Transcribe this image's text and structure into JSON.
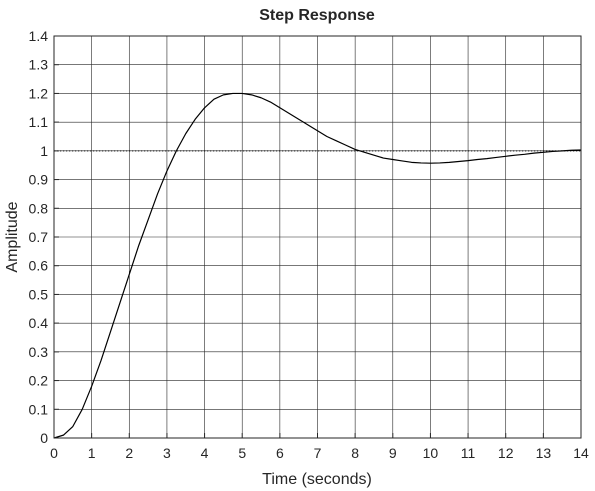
{
  "chart_data": {
    "type": "line",
    "title": "Step Response",
    "xlabel": "Time (seconds)",
    "ylabel": "Amplitude",
    "xlim": [
      0,
      14
    ],
    "ylim": [
      0,
      1.4
    ],
    "xticks": [
      0,
      1,
      2,
      3,
      4,
      5,
      6,
      7,
      8,
      9,
      10,
      11,
      12,
      13,
      14
    ],
    "yticks": [
      0,
      0.1,
      0.2,
      0.3,
      0.4,
      0.5,
      0.6,
      0.7,
      0.8,
      0.9,
      1,
      1.1,
      1.2,
      1.3,
      1.4
    ],
    "xtick_labels": [
      "0",
      "1",
      "2",
      "3",
      "4",
      "5",
      "6",
      "7",
      "8",
      "9",
      "10",
      "11",
      "12",
      "13",
      "14"
    ],
    "ytick_labels": [
      "0",
      "0.1",
      "0.2",
      "0.3",
      "0.4",
      "0.5",
      "0.6",
      "0.7",
      "0.8",
      "0.9",
      "1",
      "1.1",
      "1.2",
      "1.3",
      "1.4"
    ],
    "grid": true,
    "reference_line": {
      "y": 1,
      "style": "dotted"
    },
    "series": [
      {
        "x": [
          0,
          0.25,
          0.5,
          0.75,
          1,
          1.25,
          1.5,
          1.75,
          2,
          2.25,
          2.5,
          2.75,
          3,
          3.25,
          3.5,
          3.75,
          4,
          4.25,
          4.5,
          4.75,
          5,
          5.25,
          5.5,
          5.75,
          6,
          6.25,
          6.5,
          6.75,
          7,
          7.25,
          7.5,
          7.75,
          8,
          8.25,
          8.5,
          8.75,
          9,
          9.25,
          9.5,
          9.75,
          10,
          10.25,
          10.5,
          10.75,
          11,
          11.25,
          11.5,
          11.75,
          12,
          12.25,
          12.5,
          12.75,
          13,
          13.25,
          13.5,
          13.75,
          14
        ],
        "y": [
          0,
          0.01,
          0.04,
          0.1,
          0.18,
          0.27,
          0.37,
          0.47,
          0.57,
          0.67,
          0.76,
          0.85,
          0.93,
          1.0,
          1.06,
          1.11,
          1.15,
          1.18,
          1.195,
          1.2,
          1.2,
          1.195,
          1.185,
          1.17,
          1.15,
          1.13,
          1.11,
          1.09,
          1.07,
          1.05,
          1.035,
          1.02,
          1.005,
          0.995,
          0.985,
          0.975,
          0.97,
          0.965,
          0.96,
          0.958,
          0.957,
          0.958,
          0.96,
          0.963,
          0.966,
          0.97,
          0.973,
          0.977,
          0.981,
          0.985,
          0.988,
          0.992,
          0.995,
          0.998,
          1.0,
          1.002,
          1.003
        ]
      }
    ]
  }
}
